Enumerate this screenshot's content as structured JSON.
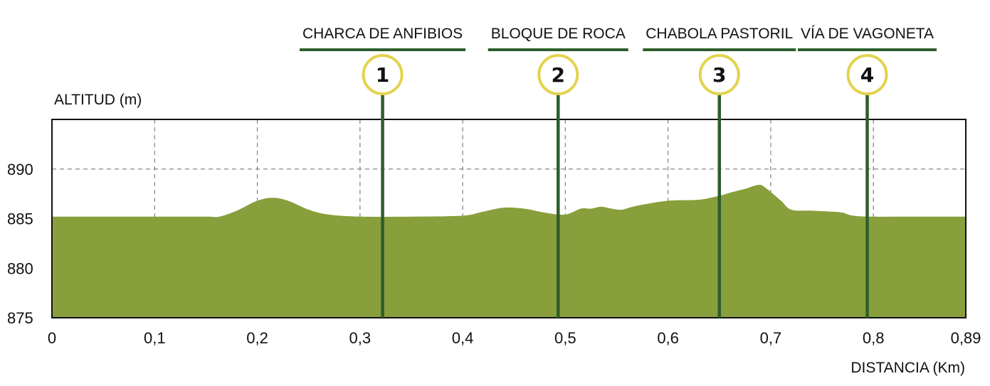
{
  "chart_data": {
    "type": "area",
    "xlabel": "DISTANCIA (Km)",
    "ylabel": "ALTITUD  (m)",
    "xlim": [
      0,
      0.89
    ],
    "ylim": [
      875,
      895
    ],
    "x_ticks": [
      0,
      0.1,
      0.2,
      0.3,
      0.4,
      0.5,
      0.6,
      0.7,
      0.8,
      0.89
    ],
    "x_tick_labels": [
      "0",
      "0,1",
      "0,2",
      "0,3",
      "0,4",
      "0,5",
      "0,6",
      "0,7",
      "0,8",
      "0,89"
    ],
    "y_ticks": [
      875,
      880,
      885,
      890
    ],
    "y_tick_labels": [
      "875",
      "880",
      "885",
      "890"
    ],
    "grid": true,
    "fill_color": "#889f3c",
    "marker_color": "#2d5e2b",
    "circle_color": "#e3d34f",
    "series": [
      {
        "x": [
          0,
          0.05,
          0.1,
          0.15,
          0.163,
          0.18,
          0.2,
          0.215,
          0.23,
          0.25,
          0.27,
          0.3,
          0.35,
          0.4,
          0.42,
          0.44,
          0.46,
          0.48,
          0.5,
          0.515,
          0.525,
          0.535,
          0.545,
          0.555,
          0.57,
          0.6,
          0.63,
          0.65,
          0.66,
          0.675,
          0.688,
          0.695,
          0.71,
          0.72,
          0.74,
          0.76,
          0.77,
          0.78,
          0.8,
          0.85,
          0.89
        ],
        "y": [
          885.2,
          885.2,
          885.2,
          885.2,
          885.2,
          885.8,
          886.8,
          887.1,
          886.8,
          885.9,
          885.4,
          885.2,
          885.2,
          885.3,
          885.7,
          886.1,
          886.0,
          885.6,
          885.4,
          886.0,
          886.0,
          886.2,
          886.0,
          885.9,
          886.3,
          886.8,
          886.9,
          887.3,
          887.6,
          888.0,
          888.4,
          888.1,
          886.8,
          885.9,
          885.8,
          885.7,
          885.6,
          885.3,
          885.2,
          885.2,
          885.2
        ]
      }
    ],
    "waypoints": [
      {
        "number": "1",
        "label": "CHARCA DE ANFIBIOS",
        "x": 0.322
      },
      {
        "number": "2",
        "label": "BLOQUE DE ROCA",
        "x": 0.493
      },
      {
        "number": "3",
        "label": "CHABOLA PASTORIL",
        "x": 0.65
      },
      {
        "number": "4",
        "label": "VÍA DE VAGONETA",
        "x": 0.794
      }
    ]
  }
}
